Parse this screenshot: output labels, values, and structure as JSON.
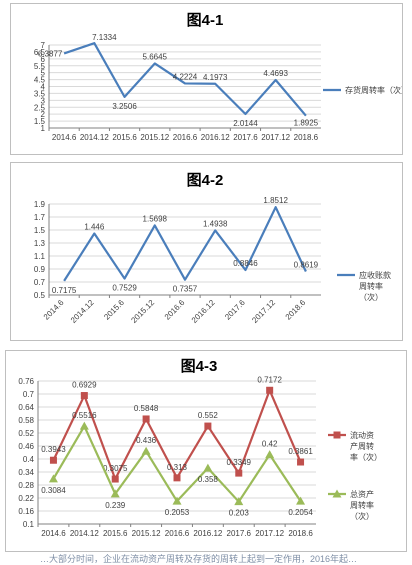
{
  "chart_data": [
    {
      "type": "line",
      "title": "图4-1",
      "x": [
        "2014.6",
        "2014.12",
        "2015.6",
        "2015.12",
        "2016.6",
        "2016.12",
        "2017.6",
        "2017.12",
        "2018.6"
      ],
      "ylim": [
        1,
        7
      ],
      "yticks": [
        "1",
        "1.5",
        "2",
        "2.5",
        "3",
        "3.5",
        "4",
        "4.5",
        "5",
        "5.5",
        "6",
        "6.5",
        "7"
      ],
      "series": [
        {
          "name": "存货周转率（次）",
          "color": "#4a7ebb",
          "values": [
            6.3877,
            7.1334,
            3.2506,
            5.6645,
            4.2224,
            4.1973,
            2.0144,
            4.4693,
            1.8925
          ],
          "labels": [
            "6.3877",
            "7.1334",
            "3.2506",
            "5.6645",
            "4.2224",
            "4.1973",
            "2.0144",
            "4.4693",
            "1.8925"
          ]
        }
      ],
      "grid": true,
      "legend": "right"
    },
    {
      "type": "line",
      "title": "图4-2",
      "x": [
        "2014.6",
        "2014.12",
        "2015.6",
        "2015.12",
        "2016.6",
        "2016.12",
        "2017.6",
        "2017.12",
        "2018.6"
      ],
      "ylim": [
        0.5,
        1.9
      ],
      "yticks": [
        "0.5",
        "0.7",
        "0.9",
        "1.1",
        "1.3",
        "1.5",
        "1.7",
        "1.9"
      ],
      "series": [
        {
          "name": "应收账款周转率（次）",
          "color": "#4a7ebb",
          "values": [
            0.7175,
            1.446,
            0.7529,
            1.5698,
            0.7357,
            1.4938,
            0.8846,
            1.8512,
            0.8619
          ],
          "labels": [
            "0.7175",
            "1.446",
            "0.7529",
            "1.5698",
            "0.7357",
            "1.4938",
            "0.8846",
            "1.8512",
            "0.8619"
          ]
        }
      ],
      "grid": true,
      "legend": "right"
    },
    {
      "type": "line",
      "title": "图4-3",
      "x": [
        "2014.6",
        "2014.12",
        "2015.6",
        "2015.12",
        "2016.6",
        "2016.12",
        "2017.6",
        "2017.12",
        "2018.6"
      ],
      "ylim": [
        0.1,
        0.76
      ],
      "yticks": [
        "0.1",
        "0.16",
        "0.22",
        "0.28",
        "0.34",
        "0.4",
        "0.46",
        "0.52",
        "0.58",
        "0.64",
        "0.7",
        "0.76"
      ],
      "series": [
        {
          "name": "流动资产周转率（次）",
          "color": "#c0504d",
          "marker": "square",
          "values": [
            0.3943,
            0.6929,
            0.3075,
            0.5848,
            0.313,
            0.552,
            0.3349,
            0.7172,
            0.3861
          ],
          "labels": [
            "0.3943",
            "0.6929",
            "0.3075",
            "0.5848",
            "0.313",
            "0.552",
            "0.3349",
            "0.7172",
            "0.3861"
          ]
        },
        {
          "name": "总资产周转率（次）",
          "color": "#9bbb59",
          "marker": "triangle",
          "values": [
            0.3084,
            0.5516,
            0.239,
            0.436,
            0.2053,
            0.358,
            0.203,
            0.42,
            0.2054
          ],
          "labels": [
            "0.3084",
            "0.5516",
            "0.239",
            "0.436",
            "0.2053",
            "0.358",
            "0.203",
            "0.42",
            "0.2054"
          ]
        }
      ],
      "grid": true,
      "legend": "right"
    }
  ],
  "legend_text": {
    "c1": [
      "存货周转",
      "率（次）"
    ],
    "c2": [
      "应收账款",
      "周转率",
      "（次）"
    ],
    "c3a": [
      "流动资",
      "产周转",
      "率（次）"
    ],
    "c3b": [
      "总资产",
      "周转率",
      "（次）"
    ]
  },
  "footer_text": "…大部分时间，企业在流动资产周转及存货的周转上起到一定作用，2016年起…"
}
